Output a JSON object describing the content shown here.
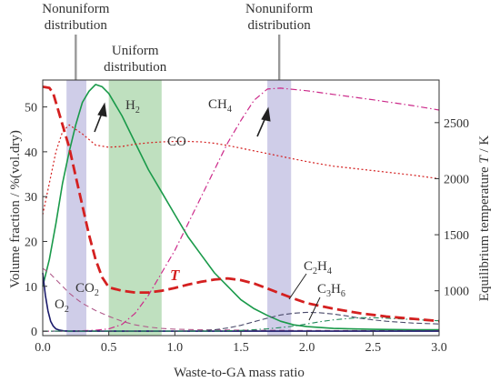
{
  "chart_data": {
    "type": "line",
    "xlabel": "Waste-to-GA mass ratio",
    "ylabel_left": "Volume fraction / %(vol.dry)",
    "ylabel_right": "Equilibrium temperature T / K",
    "xlim": [
      0,
      3.0
    ],
    "ylim_left": [
      -1,
      56
    ],
    "ylim_right": [
      600,
      2880
    ],
    "x_ticks": [
      0.0,
      0.5,
      1.0,
      1.5,
      2.0,
      2.5,
      3.0
    ],
    "x_tick_labels": [
      "0.0",
      "0.5",
      "1.0",
      "1.5",
      "2.0",
      "2.5",
      "3.0"
    ],
    "y_left_ticks": [
      0,
      10,
      20,
      30,
      40,
      50
    ],
    "y_left_tick_labels": [
      "0",
      "10",
      "20",
      "30",
      "40",
      "50"
    ],
    "y_right_ticks": [
      1000,
      1500,
      2000,
      2500
    ],
    "y_right_tick_labels": [
      "1000",
      "1500",
      "2000",
      "2500"
    ],
    "grid": false,
    "bands": [
      {
        "x0": 0.18,
        "x1": 0.33,
        "color": "#cfcde8",
        "kind": "nonuniform"
      },
      {
        "x0": 0.5,
        "x1": 0.9,
        "color": "#bfe0bf",
        "kind": "uniform"
      },
      {
        "x0": 1.7,
        "x1": 1.88,
        "color": "#cfcde8",
        "kind": "nonuniform"
      }
    ],
    "top_labels": [
      {
        "line1": "Nonuniform",
        "line2": "distribution",
        "x": 0.25,
        "marker": true
      },
      {
        "line1": "Uniform",
        "line2": "distribution",
        "x": 0.7,
        "marker": false
      },
      {
        "line1": "Nonuniform",
        "line2": "distribution",
        "x": 1.79,
        "marker": true
      }
    ],
    "series": [
      {
        "key": "H2",
        "axis": "left",
        "color": "#1a9a4a",
        "dash": "",
        "width": 1.6,
        "x": [
          0,
          0.05,
          0.1,
          0.15,
          0.2,
          0.25,
          0.3,
          0.35,
          0.4,
          0.45,
          0.5,
          0.6,
          0.7,
          0.8,
          0.9,
          1.0,
          1.1,
          1.2,
          1.3,
          1.4,
          1.5,
          1.6,
          1.7,
          1.8,
          1.9,
          2.0,
          2.2,
          2.5,
          2.8,
          3.0
        ],
        "y": [
          10,
          16,
          24,
          33,
          40,
          46,
          51,
          53.5,
          55,
          54.5,
          53,
          48,
          42,
          36,
          31,
          26,
          21,
          17,
          13,
          10,
          7,
          5,
          3.5,
          2.2,
          1.4,
          1,
          0.6,
          0.4,
          0.3,
          0.3
        ]
      },
      {
        "key": "CH4",
        "axis": "left",
        "color": "#cc2a8a",
        "dash": "7 3 1.5 3",
        "width": 1.2,
        "x": [
          0,
          0.2,
          0.4,
          0.5,
          0.6,
          0.7,
          0.8,
          0.9,
          1.0,
          1.1,
          1.2,
          1.3,
          1.4,
          1.5,
          1.6,
          1.7,
          1.8,
          2.0,
          2.2,
          2.5,
          2.8,
          3.0
        ],
        "y": [
          0,
          0,
          0.2,
          0.5,
          1.5,
          4,
          8,
          13,
          18,
          24,
          30,
          36,
          42,
          47,
          51.5,
          54,
          54.2,
          53.6,
          52.8,
          51.6,
          50.3,
          49.3
        ]
      },
      {
        "key": "CO",
        "axis": "left",
        "color": "#d42020",
        "dash": "2 2.5",
        "width": 1.2,
        "x": [
          0,
          0.05,
          0.1,
          0.15,
          0.2,
          0.3,
          0.4,
          0.5,
          0.6,
          0.7,
          0.8,
          0.9,
          1.0,
          1.1,
          1.2,
          1.3,
          1.4,
          1.5,
          1.6,
          1.7,
          1.8,
          1.9,
          2.0,
          2.2,
          2.5,
          2.8,
          3.0
        ],
        "y": [
          26,
          33,
          40,
          44.5,
          46,
          44,
          41.5,
          41,
          41.2,
          41.7,
          42,
          42.2,
          42.3,
          42.3,
          42.2,
          41.9,
          41.4,
          40.8,
          40.2,
          39.6,
          39,
          38.4,
          37.8,
          36.8,
          35.8,
          34.8,
          34
        ]
      },
      {
        "key": "CO2",
        "axis": "left",
        "color": "#b05a8a",
        "dash": "6 4",
        "width": 1.1,
        "x": [
          0,
          0.05,
          0.1,
          0.15,
          0.2,
          0.25,
          0.3,
          0.4,
          0.5,
          0.6,
          0.7,
          0.8,
          0.9,
          1.0,
          1.1,
          1.2,
          1.4,
          1.6,
          2.0,
          2.5,
          3.0
        ],
        "y": [
          14,
          13,
          11.5,
          10,
          8.5,
          7.3,
          6.2,
          4.6,
          3.3,
          2.2,
          1.4,
          0.9,
          0.6,
          0.45,
          0.35,
          0.3,
          0.25,
          0.2,
          0.15,
          0.12,
          0.1
        ]
      },
      {
        "key": "O2",
        "axis": "left",
        "color": "#1a1a6a",
        "dash": "",
        "width": 1.6,
        "x": [
          0,
          0.02,
          0.04,
          0.06,
          0.08,
          0.1,
          0.13,
          0.16,
          0.2,
          0.3,
          0.5,
          1.0,
          2.0,
          3.0
        ],
        "y": [
          13,
          8,
          4.5,
          2.2,
          1.1,
          0.5,
          0.2,
          0.05,
          0,
          0,
          0,
          0,
          0,
          0
        ]
      },
      {
        "key": "C2H4",
        "axis": "left",
        "color": "#4a4a6a",
        "dash": "6 3",
        "width": 1.1,
        "x": [
          0,
          1.0,
          1.2,
          1.3,
          1.4,
          1.5,
          1.6,
          1.7,
          1.8,
          1.9,
          2.0,
          2.1,
          2.2,
          2.3,
          2.4,
          2.5,
          2.6,
          2.8,
          3.0
        ],
        "y": [
          0,
          0,
          0.1,
          0.3,
          0.7,
          1.3,
          2.1,
          2.9,
          3.6,
          4,
          4.2,
          4.1,
          3.8,
          3.4,
          2.9,
          2.5,
          2.2,
          1.8,
          1.6
        ]
      },
      {
        "key": "C3H6",
        "axis": "left",
        "color": "#228a5a",
        "dash": "6 3 1.5 3",
        "width": 1.1,
        "x": [
          0,
          1.3,
          1.5,
          1.7,
          1.9,
          2.0,
          2.1,
          2.2,
          2.3,
          2.4,
          2.5,
          2.6,
          2.8,
          3.0
        ],
        "y": [
          0,
          0,
          0.15,
          0.5,
          1.1,
          1.6,
          2.1,
          2.5,
          2.8,
          3,
          3,
          2.9,
          2.6,
          2.3
        ]
      },
      {
        "key": "T",
        "axis": "right",
        "color": "#d42020",
        "dash": "11 5",
        "width": 2.8,
        "x": [
          0,
          0.05,
          0.08,
          0.1,
          0.15,
          0.2,
          0.25,
          0.3,
          0.35,
          0.4,
          0.45,
          0.5,
          0.6,
          0.7,
          0.8,
          0.9,
          1.0,
          1.1,
          1.2,
          1.3,
          1.4,
          1.5,
          1.6,
          1.7,
          1.8,
          1.9,
          2.0,
          2.2,
          2.4,
          2.6,
          2.8,
          3.0
        ],
        "y": [
          2820,
          2810,
          2760,
          2680,
          2480,
          2280,
          2020,
          1760,
          1500,
          1280,
          1120,
          1030,
          1000,
          985,
          985,
          1000,
          1025,
          1055,
          1080,
          1100,
          1110,
          1095,
          1065,
          1020,
          975,
          930,
          890,
          840,
          800,
          770,
          750,
          730
        ]
      }
    ]
  },
  "labels": {
    "H2": {
      "main": "H",
      "sub": "2"
    },
    "CH4": {
      "main": "CH",
      "sub": "4"
    },
    "CO": {
      "main": "CO"
    },
    "CO2": {
      "main": "CO",
      "sub": "2"
    },
    "O2": {
      "main": "O",
      "sub": "2"
    },
    "C2H4": {
      "p1": "C",
      "s1": "2",
      "p2": "H",
      "s2": "4"
    },
    "C3H6": {
      "p1": "C",
      "s1": "3",
      "p2": "H",
      "s2": "6"
    },
    "T": "T"
  },
  "colors": {
    "axis": "#333333",
    "uniform_band": "#bfe0bf",
    "nonuniform_band": "#cfcde8",
    "marker_line": "#999999"
  }
}
